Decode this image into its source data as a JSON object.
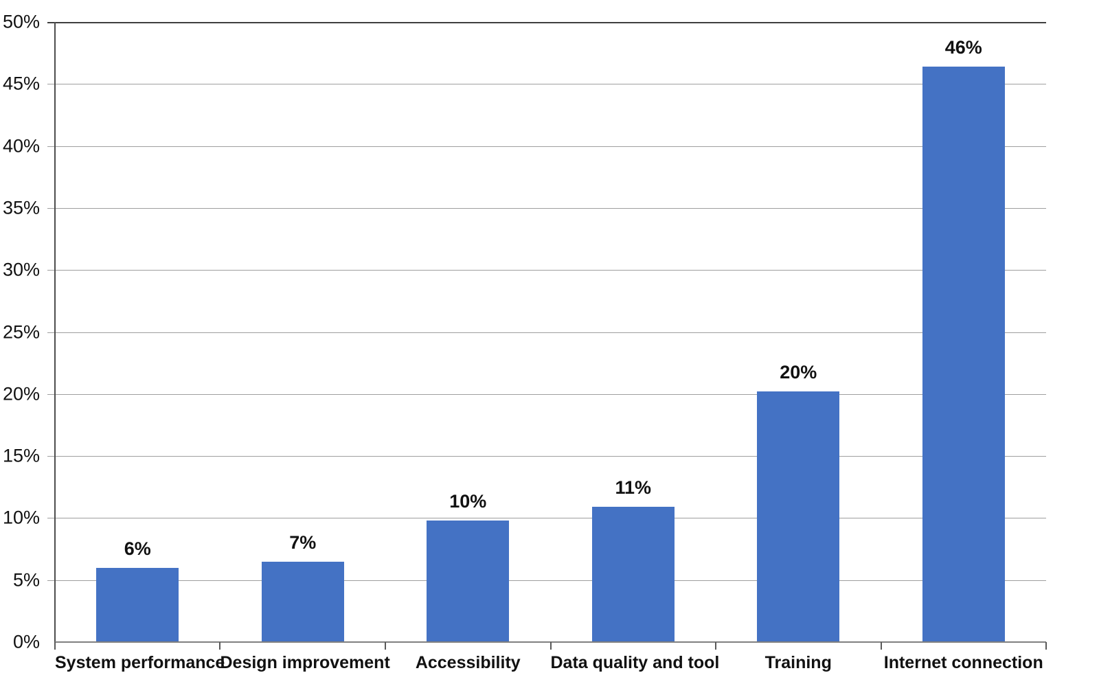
{
  "chart_data": {
    "type": "bar",
    "title": "",
    "xlabel": "",
    "ylabel": "",
    "categories": [
      "System performance",
      "Design improvement",
      "Accessibility",
      "Data quality and tool",
      "Training",
      "Internet connection"
    ],
    "values": [
      6.0,
      6.5,
      9.8,
      10.9,
      20.2,
      46.4
    ],
    "data_labels": [
      "6%",
      "7%",
      "10%",
      "11%",
      "20%",
      "46%"
    ],
    "ylim": [
      0,
      50
    ],
    "ytick_step": 5,
    "ytick_labels": [
      "0%",
      "5%",
      "10%",
      "15%",
      "20%",
      "25%",
      "30%",
      "35%",
      "40%",
      "45%",
      "50%"
    ],
    "grid": true,
    "legend": false,
    "bar_width_ratio": 0.5,
    "colors": {
      "bar": "#4472C4",
      "gridline": "#9E9E9E",
      "top_gridline": "#3F3F3F",
      "y_axis": "#4D4D4D",
      "x_axis": "#7F7F7F",
      "tick": "#595959",
      "text": "#111111",
      "background": "#FFFFFF"
    }
  }
}
